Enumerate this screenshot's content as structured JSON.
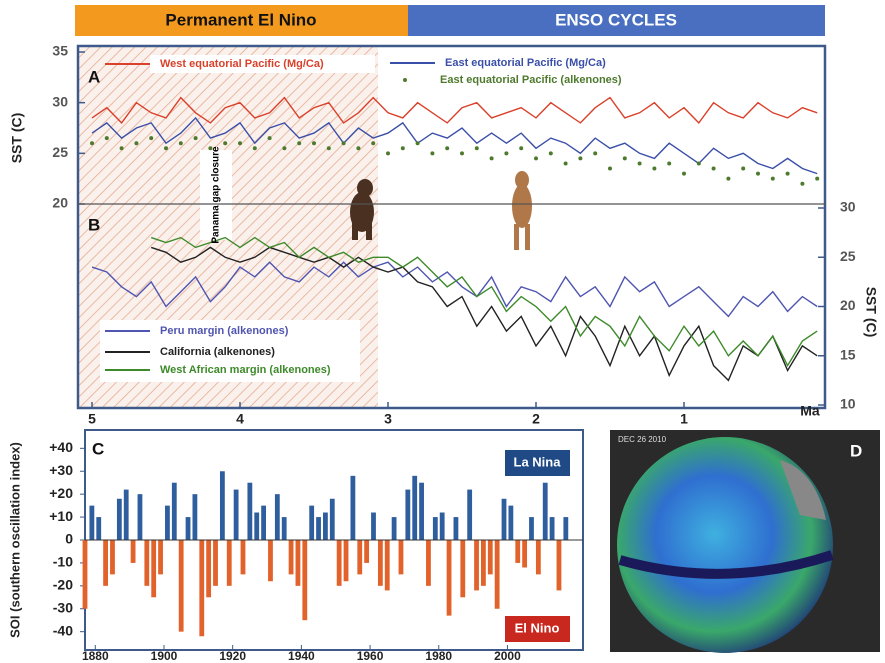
{
  "header": {
    "bands": [
      {
        "label": "Permanent El Nino",
        "color": "#f39a1e"
      },
      {
        "label": "ENSO CYCLES",
        "color": "#4a6fc0"
      }
    ]
  },
  "chart_data": [
    {
      "type": "line",
      "xlabel": "Ma",
      "ylabel": "SST (C)",
      "y2label": "SST (C)",
      "annotations": [
        "A",
        "B",
        "Panama gap closure"
      ],
      "xlim": [
        5,
        0
      ],
      "xticks": [
        5,
        4,
        3,
        2,
        1
      ],
      "ylim": [
        20,
        35
      ],
      "yticks": [
        20,
        25,
        30,
        35
      ],
      "y2lim": [
        10,
        30
      ],
      "y2ticks": [
        10,
        15,
        20,
        25,
        30
      ],
      "x": [
        5,
        4.9,
        4.8,
        4.7,
        4.6,
        4.5,
        4.4,
        4.3,
        4.2,
        4.1,
        4,
        3.9,
        3.8,
        3.7,
        3.6,
        3.5,
        3.4,
        3.3,
        3.2,
        3.1,
        3,
        2.9,
        2.8,
        2.7,
        2.6,
        2.5,
        2.4,
        2.3,
        2.2,
        2.1,
        2,
        1.9,
        1.8,
        1.7,
        1.6,
        1.5,
        1.4,
        1.3,
        1.2,
        1.1,
        1,
        0.9,
        0.8,
        0.7,
        0.6,
        0.5,
        0.4,
        0.3,
        0.2,
        0.1
      ],
      "series": [
        {
          "name": "West equatorial Pacific (Mg/Ca)",
          "color": "#d9412b",
          "axis": "y",
          "mode": "line",
          "values": [
            28.5,
            29.5,
            28,
            30,
            29,
            28.5,
            30.5,
            29,
            28,
            29.5,
            30,
            28.5,
            29,
            30.5,
            28.5,
            29.5,
            30,
            28,
            29,
            30.5,
            29,
            28.5,
            30,
            29,
            28,
            29.5,
            30,
            28.5,
            29,
            29.5,
            28.5,
            30,
            29,
            28,
            29.5,
            30.5,
            28.5,
            29,
            30,
            28.5,
            29.5,
            28,
            30,
            29,
            28.5,
            30,
            29,
            28.5,
            29.5,
            29
          ]
        },
        {
          "name": "East equatorial Pacific (Mg/Ca)",
          "color": "#3a4fa8",
          "axis": "y",
          "mode": "line",
          "values": [
            27,
            28,
            26.5,
            27.5,
            28,
            26,
            27,
            28.5,
            26.5,
            27,
            28,
            26,
            27.5,
            28,
            26.5,
            27,
            28,
            26,
            27.5,
            26.5,
            27,
            28,
            26,
            27,
            26.5,
            27.5,
            26,
            27,
            26,
            27,
            25.5,
            26.5,
            26,
            25,
            26.5,
            25.5,
            26,
            25,
            24.5,
            26,
            25,
            24,
            25.5,
            24.5,
            25,
            24,
            23.5,
            24.5,
            23.5,
            23
          ]
        },
        {
          "name": "East equatorial Pacific (alkenones)",
          "color": "#4e7a2e",
          "axis": "y",
          "mode": "markers",
          "values": [
            26,
            26.5,
            25.5,
            26,
            26.5,
            25.5,
            26,
            26.5,
            25.5,
            26,
            26,
            25.5,
            26.5,
            25.5,
            26,
            26,
            25.5,
            26,
            25.5,
            26,
            25,
            25.5,
            26,
            25,
            25.5,
            25,
            25.5,
            24.5,
            25,
            25.5,
            24.5,
            25,
            24,
            24.5,
            25,
            23.5,
            24.5,
            24,
            23.5,
            24,
            23,
            24,
            23.5,
            22.5,
            23.5,
            23,
            22.5,
            23,
            22,
            22.5
          ]
        },
        {
          "name": "Peru margin (alkenones)",
          "color": "#4f55b0",
          "axis": "y2",
          "mode": "line",
          "values": [
            24,
            23.5,
            22,
            21,
            22.5,
            20,
            21.5,
            23,
            20.5,
            22,
            24,
            23,
            24.5,
            23,
            22.5,
            24,
            23,
            24.5,
            23,
            24,
            24.5,
            23,
            24,
            22.5,
            23.5,
            22,
            21,
            23,
            20,
            22,
            21.5,
            20.5,
            23,
            21,
            22,
            20,
            23,
            21.5,
            22.5,
            20,
            21,
            22,
            20.5,
            19,
            21,
            20,
            21.5,
            19.5,
            21,
            20
          ]
        },
        {
          "name": "California (alkenones)",
          "color": "#222222",
          "axis": "y2",
          "mode": "line",
          "values": [
            null,
            null,
            null,
            null,
            26,
            25.5,
            24.5,
            25,
            26,
            25,
            24.5,
            25,
            26,
            25.5,
            25,
            24.5,
            25,
            24,
            25,
            24,
            23.5,
            24,
            22.5,
            22,
            20,
            21,
            18,
            20,
            17.5,
            19,
            16,
            18,
            15,
            19,
            17,
            14,
            18,
            15,
            17,
            13,
            16,
            18,
            14,
            12.5,
            16,
            15,
            17,
            13.5,
            16,
            15
          ]
        },
        {
          "name": "West African margin (alkenones)",
          "color": "#3d8a2a",
          "axis": "y2",
          "mode": "line",
          "values": [
            null,
            null,
            null,
            null,
            27,
            26.5,
            27,
            26,
            26.5,
            27,
            26,
            27,
            26,
            26.5,
            25,
            26,
            25,
            25.5,
            24.5,
            25,
            25,
            24,
            25,
            23.5,
            22,
            23,
            21,
            22,
            19.5,
            21,
            20,
            18.5,
            20,
            17,
            19,
            18,
            16,
            19,
            17,
            15.5,
            18,
            16,
            17.5,
            15,
            16.5,
            15,
            17,
            14,
            16.5,
            17.5
          ]
        }
      ]
    },
    {
      "type": "bar",
      "ylabel": "SOI (southern oscillation index)",
      "annotations": [
        "C",
        "La Nina",
        "El Nino"
      ],
      "xlim": [
        1877,
        2022
      ],
      "xticks": [
        1880,
        1900,
        1920,
        1940,
        1960,
        1980,
        2000
      ],
      "ylim": [
        -48,
        48
      ],
      "yticks": [
        {
          "value": 40,
          "label": "+40"
        },
        {
          "value": 30,
          "label": "+30"
        },
        {
          "value": 20,
          "label": "+20"
        },
        {
          "value": 10,
          "label": "+10"
        },
        0,
        -10,
        -20,
        -30,
        -40
      ],
      "pos_color": "#2f5e9f",
      "neg_color": "#e2622b",
      "x": [
        1877,
        1879,
        1881,
        1883,
        1885,
        1887,
        1889,
        1891,
        1893,
        1895,
        1897,
        1899,
        1901,
        1903,
        1905,
        1907,
        1909,
        1911,
        1913,
        1915,
        1917,
        1919,
        1921,
        1923,
        1925,
        1927,
        1929,
        1931,
        1933,
        1935,
        1937,
        1939,
        1941,
        1943,
        1945,
        1947,
        1949,
        1951,
        1953,
        1955,
        1957,
        1959,
        1961,
        1963,
        1965,
        1967,
        1969,
        1971,
        1973,
        1975,
        1977,
        1979,
        1981,
        1983,
        1985,
        1987,
        1989,
        1991,
        1993,
        1995,
        1997,
        1999,
        2001,
        2003,
        2005,
        2007,
        2009,
        2011,
        2013,
        2015,
        2017
      ],
      "values": [
        -30,
        15,
        10,
        -20,
        -15,
        18,
        22,
        -10,
        20,
        -20,
        -25,
        -15,
        15,
        25,
        -40,
        10,
        20,
        -42,
        -25,
        -20,
        30,
        -20,
        22,
        -15,
        25,
        12,
        15,
        -18,
        20,
        10,
        -15,
        -20,
        -35,
        15,
        10,
        12,
        18,
        -20,
        -18,
        28,
        -15,
        -10,
        12,
        -20,
        -22,
        10,
        -15,
        22,
        28,
        25,
        -20,
        10,
        12,
        -33,
        10,
        -25,
        22,
        -22,
        -20,
        -15,
        -30,
        18,
        15,
        -10,
        -12,
        10,
        -15,
        25,
        10,
        -22,
        10
      ]
    }
  ],
  "panel_d": {
    "label": "D",
    "date": "DEC 26 2010"
  }
}
